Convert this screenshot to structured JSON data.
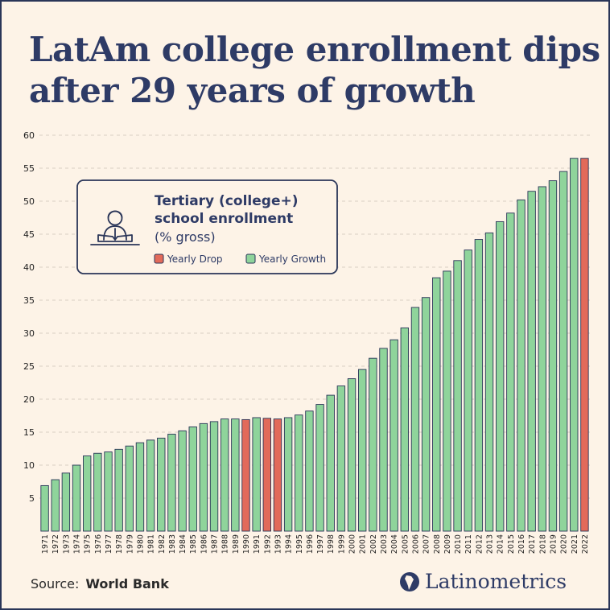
{
  "title_lines": [
    "LatAm college enrollment dips",
    "after 29 years of growth"
  ],
  "legend": {
    "heading_lines": [
      "Tertiary (college+)",
      "school enrollment"
    ],
    "subheading": "(% gross)",
    "drop_label": "Yearly Drop",
    "growth_label": "Yearly Growth",
    "icon": "student-reading-icon"
  },
  "source_label": "Source:",
  "source_name": "World Bank",
  "brand": "Latinometrics",
  "colors": {
    "growth": "#8fd49b",
    "drop": "#e26a5a",
    "outline": "#2a3558",
    "title": "#2e3b66",
    "background": "#fdf3e7"
  },
  "chart_data": {
    "type": "bar",
    "categories": [
      "1971",
      "1972",
      "1973",
      "1974",
      "1975",
      "1976",
      "1977",
      "1978",
      "1979",
      "1980",
      "1981",
      "1982",
      "1983",
      "1984",
      "1985",
      "1986",
      "1987",
      "1988",
      "1989",
      "1990",
      "1991",
      "1992",
      "1993",
      "1994",
      "1995",
      "1996",
      "1997",
      "1998",
      "1999",
      "2000",
      "2001",
      "2002",
      "2003",
      "2004",
      "2005",
      "2006",
      "2007",
      "2008",
      "2009",
      "2010",
      "2011",
      "2012",
      "2013",
      "2014",
      "2015",
      "2016",
      "2017",
      "2018",
      "2019",
      "2020",
      "2021",
      "2022"
    ],
    "values": [
      6.9,
      7.8,
      8.8,
      10.0,
      11.4,
      11.8,
      12.0,
      12.4,
      12.9,
      13.4,
      13.8,
      14.1,
      14.7,
      15.2,
      15.8,
      16.3,
      16.6,
      17.0,
      17.0,
      16.9,
      17.2,
      17.1,
      17.0,
      17.2,
      17.6,
      18.2,
      19.2,
      20.6,
      22.0,
      23.1,
      24.5,
      26.2,
      27.7,
      29.0,
      30.8,
      33.9,
      35.4,
      38.4,
      39.4,
      41.0,
      42.6,
      44.2,
      45.2,
      46.9,
      48.2,
      50.2,
      51.5,
      52.2,
      53.1,
      54.5,
      56.5,
      56.5
    ],
    "drop_years": [
      "1990",
      "1992",
      "1993",
      "2022"
    ],
    "yticks": [
      5,
      10,
      15,
      20,
      25,
      30,
      35,
      40,
      45,
      50,
      55,
      60
    ],
    "ylim": [
      0,
      60
    ],
    "grid": true,
    "legend_position": "top-left"
  }
}
